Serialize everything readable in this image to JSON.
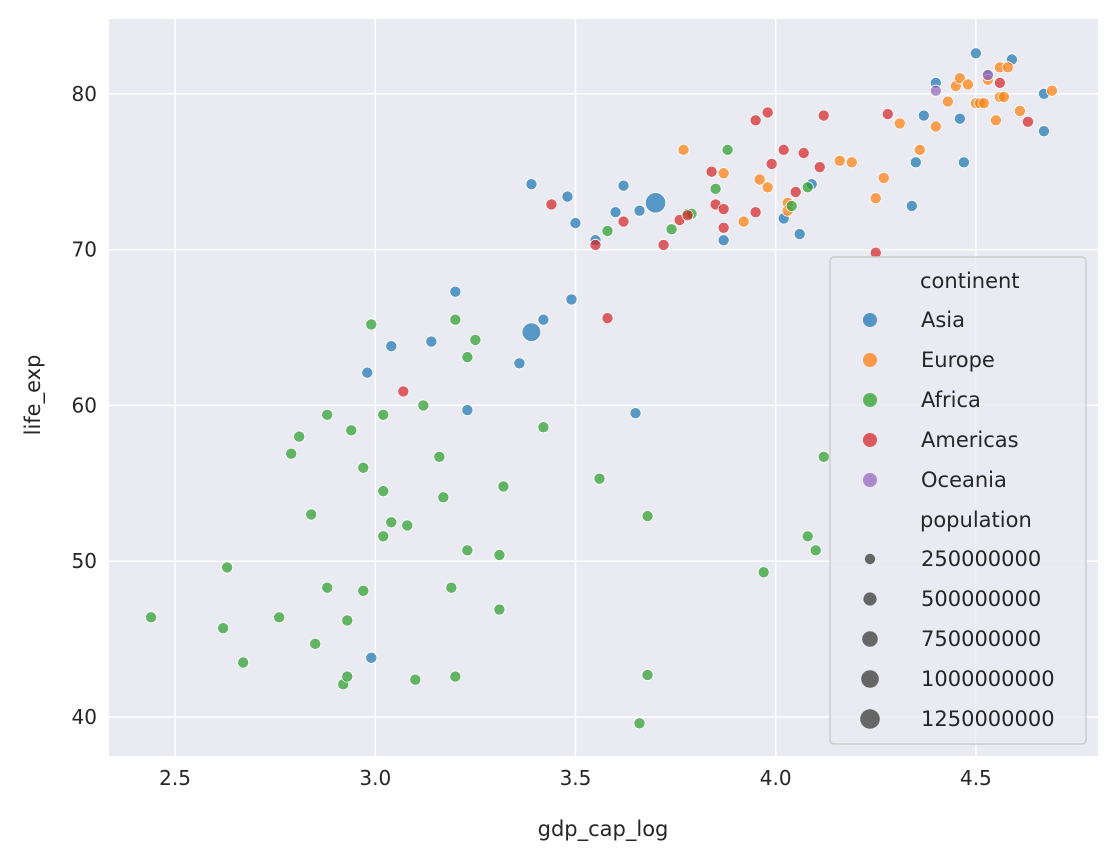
{
  "chart_data": {
    "type": "scatter",
    "title": "",
    "xlabel": "gdp_cap_log",
    "ylabel": "life_exp",
    "xlim": [
      2.335,
      4.805
    ],
    "ylim": [
      37.5,
      84.8
    ],
    "xticks": [
      2.5,
      3.0,
      3.5,
      4.0,
      4.5
    ],
    "xtick_labels": [
      "2.5",
      "3.0",
      "3.5",
      "4.0",
      "4.5"
    ],
    "yticks": [
      40,
      50,
      60,
      70,
      80
    ],
    "ytick_labels": [
      "40",
      "50",
      "60",
      "70",
      "80"
    ],
    "grid": true,
    "background": "#eaeaf2",
    "legend_position": "lower right",
    "legend": {
      "hue_title": "continent",
      "size_title": "population",
      "hue_entries": [
        {
          "label": "Asia",
          "color": "#1f77b4"
        },
        {
          "label": "Europe",
          "color": "#ff7f0e"
        },
        {
          "label": "Africa",
          "color": "#2ca02c"
        },
        {
          "label": "Americas",
          "color": "#d62728"
        },
        {
          "label": "Oceania",
          "color": "#9467bd"
        }
      ],
      "size_entries": [
        {
          "label": "250000000",
          "value": 250000000
        },
        {
          "label": "500000000",
          "value": 500000000
        },
        {
          "label": "750000000",
          "value": 750000000
        },
        {
          "label": "1000000000",
          "value": 1000000000
        },
        {
          "label": "1250000000",
          "value": 1250000000
        }
      ]
    },
    "series": [
      {
        "name": "Asia",
        "color": "#1f77b4",
        "points": [
          [
            3.39,
            74.2,
            30000000
          ],
          [
            3.48,
            73.4,
            20000000
          ],
          [
            3.5,
            71.7,
            40000000
          ],
          [
            3.55,
            70.6,
            150000000
          ],
          [
            3.6,
            72.4,
            20000000
          ],
          [
            3.62,
            74.1,
            20000000
          ],
          [
            3.66,
            72.5,
            20000000
          ],
          [
            3.7,
            73.0,
            1318000000
          ],
          [
            3.39,
            64.7,
            1110000000
          ],
          [
            3.42,
            65.5,
            80000000
          ],
          [
            3.49,
            66.8,
            20000000
          ],
          [
            3.36,
            62.7,
            20000000
          ],
          [
            3.2,
            67.3,
            20000000
          ],
          [
            3.14,
            64.1,
            160000000
          ],
          [
            3.04,
            63.8,
            20000000
          ],
          [
            2.98,
            62.1,
            20000000
          ],
          [
            3.23,
            59.7,
            20000000
          ],
          [
            3.65,
            59.5,
            20000000
          ],
          [
            2.99,
            43.8,
            30000000
          ],
          [
            3.87,
            70.6,
            20000000
          ],
          [
            4.02,
            72.0,
            20000000
          ],
          [
            4.06,
            71.0,
            20000000
          ],
          [
            4.09,
            74.2,
            50000000
          ],
          [
            4.34,
            72.8,
            20000000
          ],
          [
            4.35,
            75.6,
            20000000
          ],
          [
            4.37,
            78.6,
            20000000
          ],
          [
            4.4,
            80.7,
            20000000
          ],
          [
            4.47,
            75.6,
            20000000
          ],
          [
            4.46,
            78.4,
            20000000
          ],
          [
            4.5,
            82.6,
            120000000
          ],
          [
            4.59,
            82.2,
            20000000
          ],
          [
            4.67,
            80.0,
            20000000
          ],
          [
            4.67,
            77.6,
            20000000
          ],
          [
            4.53,
            81.2,
            20000000
          ]
        ]
      },
      {
        "name": "Europe",
        "color": "#ff7f0e",
        "points": [
          [
            3.77,
            76.4,
            20000000
          ],
          [
            3.87,
            74.9,
            20000000
          ],
          [
            3.92,
            71.8,
            40000000
          ],
          [
            3.96,
            74.5,
            20000000
          ],
          [
            3.98,
            74.0,
            20000000
          ],
          [
            4.03,
            73.0,
            20000000
          ],
          [
            4.03,
            72.5,
            20000000
          ],
          [
            4.16,
            75.7,
            20000000
          ],
          [
            4.19,
            75.6,
            20000000
          ],
          [
            4.25,
            73.3,
            20000000
          ],
          [
            4.27,
            74.6,
            20000000
          ],
          [
            4.31,
            78.1,
            20000000
          ],
          [
            4.36,
            76.4,
            20000000
          ],
          [
            4.4,
            77.9,
            20000000
          ],
          [
            4.43,
            79.5,
            20000000
          ],
          [
            4.45,
            80.5,
            60000000
          ],
          [
            4.46,
            81.0,
            40000000
          ],
          [
            4.48,
            80.6,
            20000000
          ],
          [
            4.5,
            79.4,
            20000000
          ],
          [
            4.51,
            79.4,
            20000000
          ],
          [
            4.52,
            79.4,
            80000000
          ],
          [
            4.53,
            80.9,
            20000000
          ],
          [
            4.55,
            78.3,
            20000000
          ],
          [
            4.56,
            79.8,
            20000000
          ],
          [
            4.57,
            79.8,
            20000000
          ],
          [
            4.56,
            81.7,
            20000000
          ],
          [
            4.58,
            81.7,
            20000000
          ],
          [
            4.61,
            78.9,
            20000000
          ],
          [
            4.69,
            80.2,
            20000000
          ]
        ]
      },
      {
        "name": "Africa",
        "color": "#2ca02c",
        "points": [
          [
            2.44,
            46.4,
            20000000
          ],
          [
            2.62,
            45.7,
            20000000
          ],
          [
            2.63,
            49.6,
            20000000
          ],
          [
            2.67,
            43.5,
            20000000
          ],
          [
            2.76,
            46.4,
            20000000
          ],
          [
            2.79,
            56.9,
            20000000
          ],
          [
            2.81,
            58.0,
            20000000
          ],
          [
            2.84,
            53.0,
            40000000
          ],
          [
            2.85,
            44.7,
            20000000
          ],
          [
            2.88,
            59.4,
            20000000
          ],
          [
            2.88,
            48.3,
            20000000
          ],
          [
            2.92,
            42.1,
            20000000
          ],
          [
            2.93,
            46.2,
            20000000
          ],
          [
            2.94,
            58.4,
            20000000
          ],
          [
            2.97,
            56.0,
            20000000
          ],
          [
            2.97,
            48.1,
            20000000
          ],
          [
            2.99,
            65.2,
            20000000
          ],
          [
            3.02,
            59.4,
            20000000
          ],
          [
            3.02,
            54.5,
            20000000
          ],
          [
            3.02,
            51.6,
            20000000
          ],
          [
            3.04,
            52.5,
            20000000
          ],
          [
            3.08,
            52.3,
            20000000
          ],
          [
            3.1,
            42.4,
            20000000
          ],
          [
            3.12,
            60.0,
            20000000
          ],
          [
            3.16,
            56.7,
            20000000
          ],
          [
            3.17,
            54.1,
            20000000
          ],
          [
            3.19,
            48.3,
            20000000
          ],
          [
            3.2,
            42.6,
            20000000
          ],
          [
            3.2,
            65.5,
            20000000
          ],
          [
            3.23,
            63.1,
            20000000
          ],
          [
            3.23,
            50.7,
            20000000
          ],
          [
            3.25,
            64.2,
            20000000
          ],
          [
            3.31,
            50.4,
            20000000
          ],
          [
            3.31,
            46.9,
            40000000
          ],
          [
            3.32,
            54.8,
            20000000
          ],
          [
            3.42,
            58.6,
            20000000
          ],
          [
            3.56,
            55.3,
            20000000
          ],
          [
            3.58,
            71.2,
            20000000
          ],
          [
            3.66,
            39.6,
            20000000
          ],
          [
            3.68,
            52.9,
            20000000
          ],
          [
            3.68,
            42.7,
            20000000
          ],
          [
            3.74,
            71.3,
            20000000
          ],
          [
            3.78,
            72.3,
            20000000
          ],
          [
            3.85,
            73.9,
            20000000
          ],
          [
            3.88,
            76.4,
            20000000
          ],
          [
            3.97,
            49.3,
            20000000
          ],
          [
            4.04,
            72.8,
            20000000
          ],
          [
            4.08,
            74.0,
            20000000
          ],
          [
            4.08,
            51.6,
            20000000
          ],
          [
            4.1,
            50.7,
            20000000
          ],
          [
            4.12,
            56.7,
            20000000
          ],
          [
            2.93,
            42.6,
            20000000
          ],
          [
            3.79,
            72.3,
            20000000
          ]
        ]
      },
      {
        "name": "Americas",
        "color": "#d62728",
        "points": [
          [
            3.07,
            60.9,
            20000000
          ],
          [
            3.44,
            72.9,
            20000000
          ],
          [
            3.55,
            70.3,
            20000000
          ],
          [
            3.58,
            65.6,
            20000000
          ],
          [
            3.62,
            71.8,
            20000000
          ],
          [
            3.72,
            70.3,
            20000000
          ],
          [
            3.76,
            71.9,
            20000000
          ],
          [
            3.78,
            72.2,
            20000000
          ],
          [
            3.84,
            75.0,
            20000000
          ],
          [
            3.85,
            72.9,
            20000000
          ],
          [
            3.87,
            72.6,
            20000000
          ],
          [
            3.87,
            71.4,
            20000000
          ],
          [
            3.95,
            78.3,
            20000000
          ],
          [
            3.95,
            72.4,
            100000000
          ],
          [
            3.98,
            78.8,
            20000000
          ],
          [
            3.99,
            75.5,
            20000000
          ],
          [
            4.02,
            76.4,
            20000000
          ],
          [
            4.05,
            73.7,
            20000000
          ],
          [
            4.07,
            76.2,
            40000000
          ],
          [
            4.11,
            75.3,
            20000000
          ],
          [
            4.12,
            78.6,
            20000000
          ],
          [
            4.25,
            69.8,
            20000000
          ],
          [
            4.28,
            78.7,
            20000000
          ],
          [
            4.56,
            80.7,
            30000000
          ],
          [
            4.63,
            78.2,
            300000000
          ]
        ]
      },
      {
        "name": "Oceania",
        "color": "#9467bd",
        "points": [
          [
            4.4,
            80.2,
            20000000
          ],
          [
            4.53,
            81.2,
            20000000
          ]
        ]
      }
    ]
  }
}
